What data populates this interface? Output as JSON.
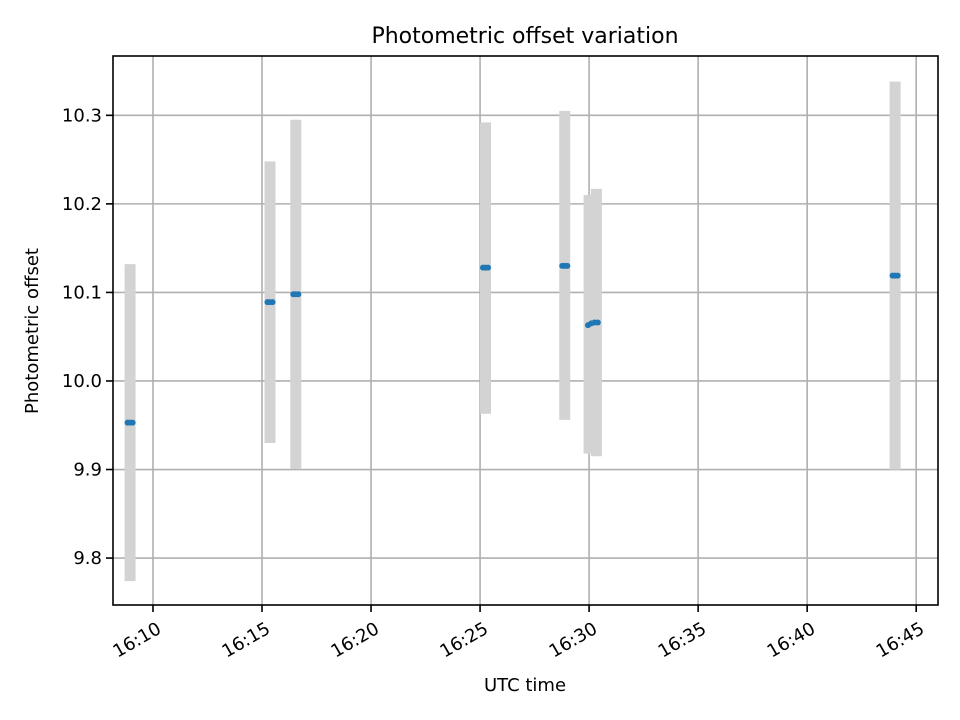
{
  "chart_data": {
    "type": "scatter",
    "title": "Photometric offset variation",
    "xlabel": "UTC time",
    "ylabel": "Photometric offset",
    "x_type": "time",
    "xlim": [
      "16:08:10",
      "16:46:00"
    ],
    "ylim": [
      9.747,
      10.367
    ],
    "grid": true,
    "x_ticks": [
      "16:10",
      "16:15",
      "16:20",
      "16:25",
      "16:30",
      "16:35",
      "16:40",
      "16:45"
    ],
    "y_ticks": [
      "9.8",
      "9.9",
      "10.0",
      "10.1",
      "10.2",
      "10.3"
    ],
    "colors": {
      "points": "#1f77b4",
      "error_bars": "#d3d3d3",
      "grid": "#b0b0b0"
    },
    "series": [
      {
        "points": [
          {
            "x": "16:08:50",
            "y": 9.953
          },
          {
            "x": "16:08:57",
            "y": 9.953
          },
          {
            "x": "16:09:04",
            "y": 9.953
          },
          {
            "x": "16:15:15",
            "y": 10.089
          },
          {
            "x": "16:15:22",
            "y": 10.089
          },
          {
            "x": "16:15:29",
            "y": 10.089
          },
          {
            "x": "16:16:26",
            "y": 10.098
          },
          {
            "x": "16:16:33",
            "y": 10.098
          },
          {
            "x": "16:16:40",
            "y": 10.098
          },
          {
            "x": "16:25:08",
            "y": 10.128
          },
          {
            "x": "16:25:15",
            "y": 10.128
          },
          {
            "x": "16:25:22",
            "y": 10.128
          },
          {
            "x": "16:28:46",
            "y": 10.13
          },
          {
            "x": "16:28:53",
            "y": 10.13
          },
          {
            "x": "16:29:00",
            "y": 10.13
          },
          {
            "x": "16:29:57",
            "y": 10.063
          },
          {
            "x": "16:30:06",
            "y": 10.065
          },
          {
            "x": "16:30:15",
            "y": 10.066
          },
          {
            "x": "16:30:24",
            "y": 10.066
          },
          {
            "x": "16:43:55",
            "y": 10.119
          },
          {
            "x": "16:44:02",
            "y": 10.119
          },
          {
            "x": "16:44:09",
            "y": 10.119
          }
        ],
        "error_bars": [
          {
            "x": "16:08:57",
            "low": 9.774,
            "high": 10.132
          },
          {
            "x": "16:15:22",
            "low": 9.93,
            "high": 10.248
          },
          {
            "x": "16:16:33",
            "low": 9.901,
            "high": 10.295
          },
          {
            "x": "16:25:15",
            "low": 9.963,
            "high": 10.292
          },
          {
            "x": "16:28:53",
            "low": 9.956,
            "high": 10.305
          },
          {
            "x": "16:30:00",
            "low": 9.918,
            "high": 10.21
          },
          {
            "x": "16:30:20",
            "low": 9.915,
            "high": 10.217
          },
          {
            "x": "16:44:02",
            "low": 9.9,
            "high": 10.338
          }
        ]
      }
    ]
  }
}
